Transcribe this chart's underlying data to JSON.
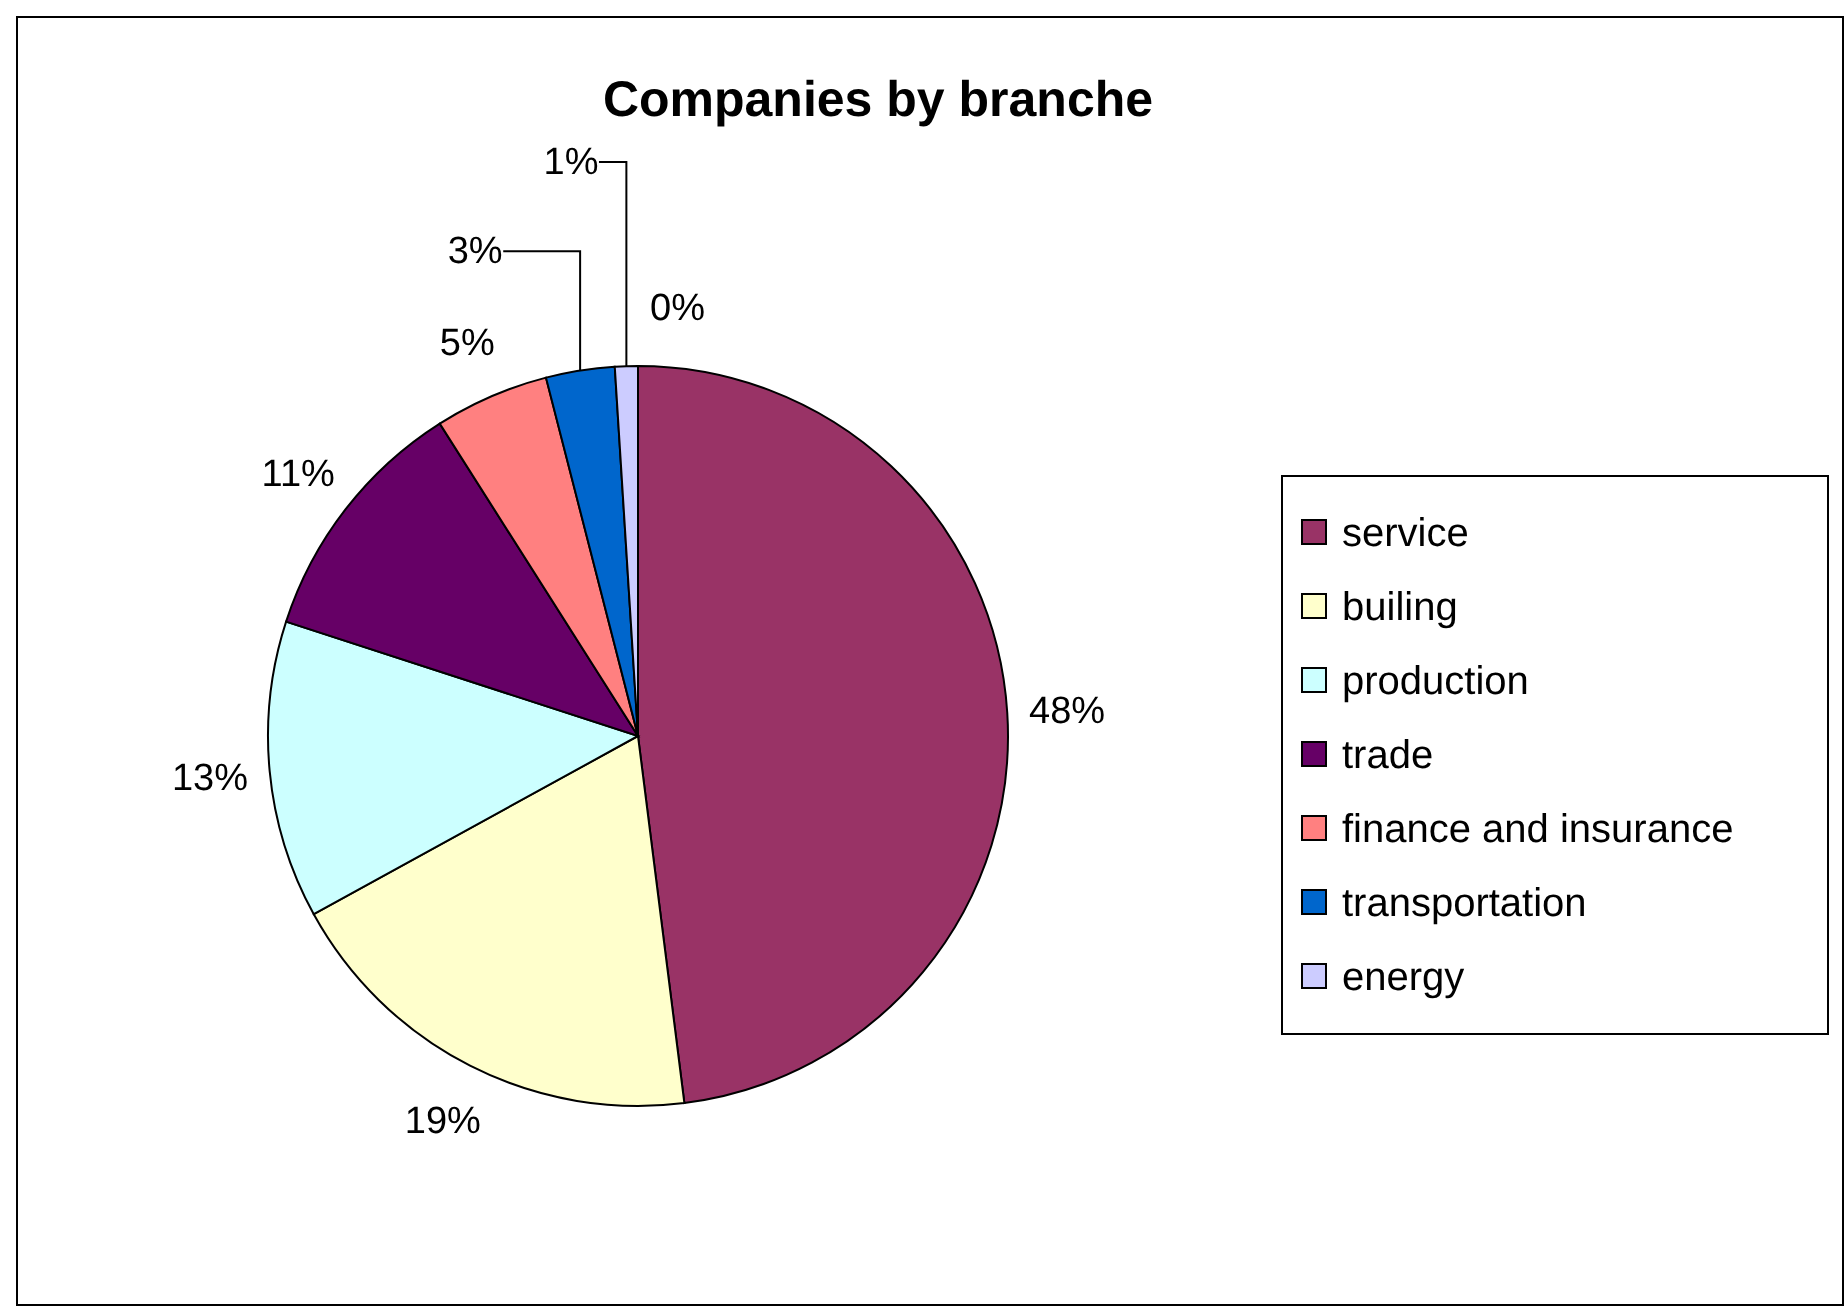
{
  "chart_data": {
    "type": "pie",
    "title": "Companies by branche",
    "categories": [
      "service",
      "builing",
      "production",
      "trade",
      "finance and insurance",
      "transportation",
      "energy",
      null
    ],
    "values": [
      48,
      19,
      13,
      11,
      5,
      3,
      1,
      0
    ],
    "colors": [
      "#993366",
      "#ffffcc",
      "#ccffff",
      "#660066",
      "#ff8080",
      "#0066cc",
      "#ccccff",
      "#000080"
    ],
    "value_labels": [
      "48%",
      "19%",
      "13%",
      "11%",
      "5%",
      "3%",
      "1%",
      "0%"
    ],
    "legend": "right"
  }
}
